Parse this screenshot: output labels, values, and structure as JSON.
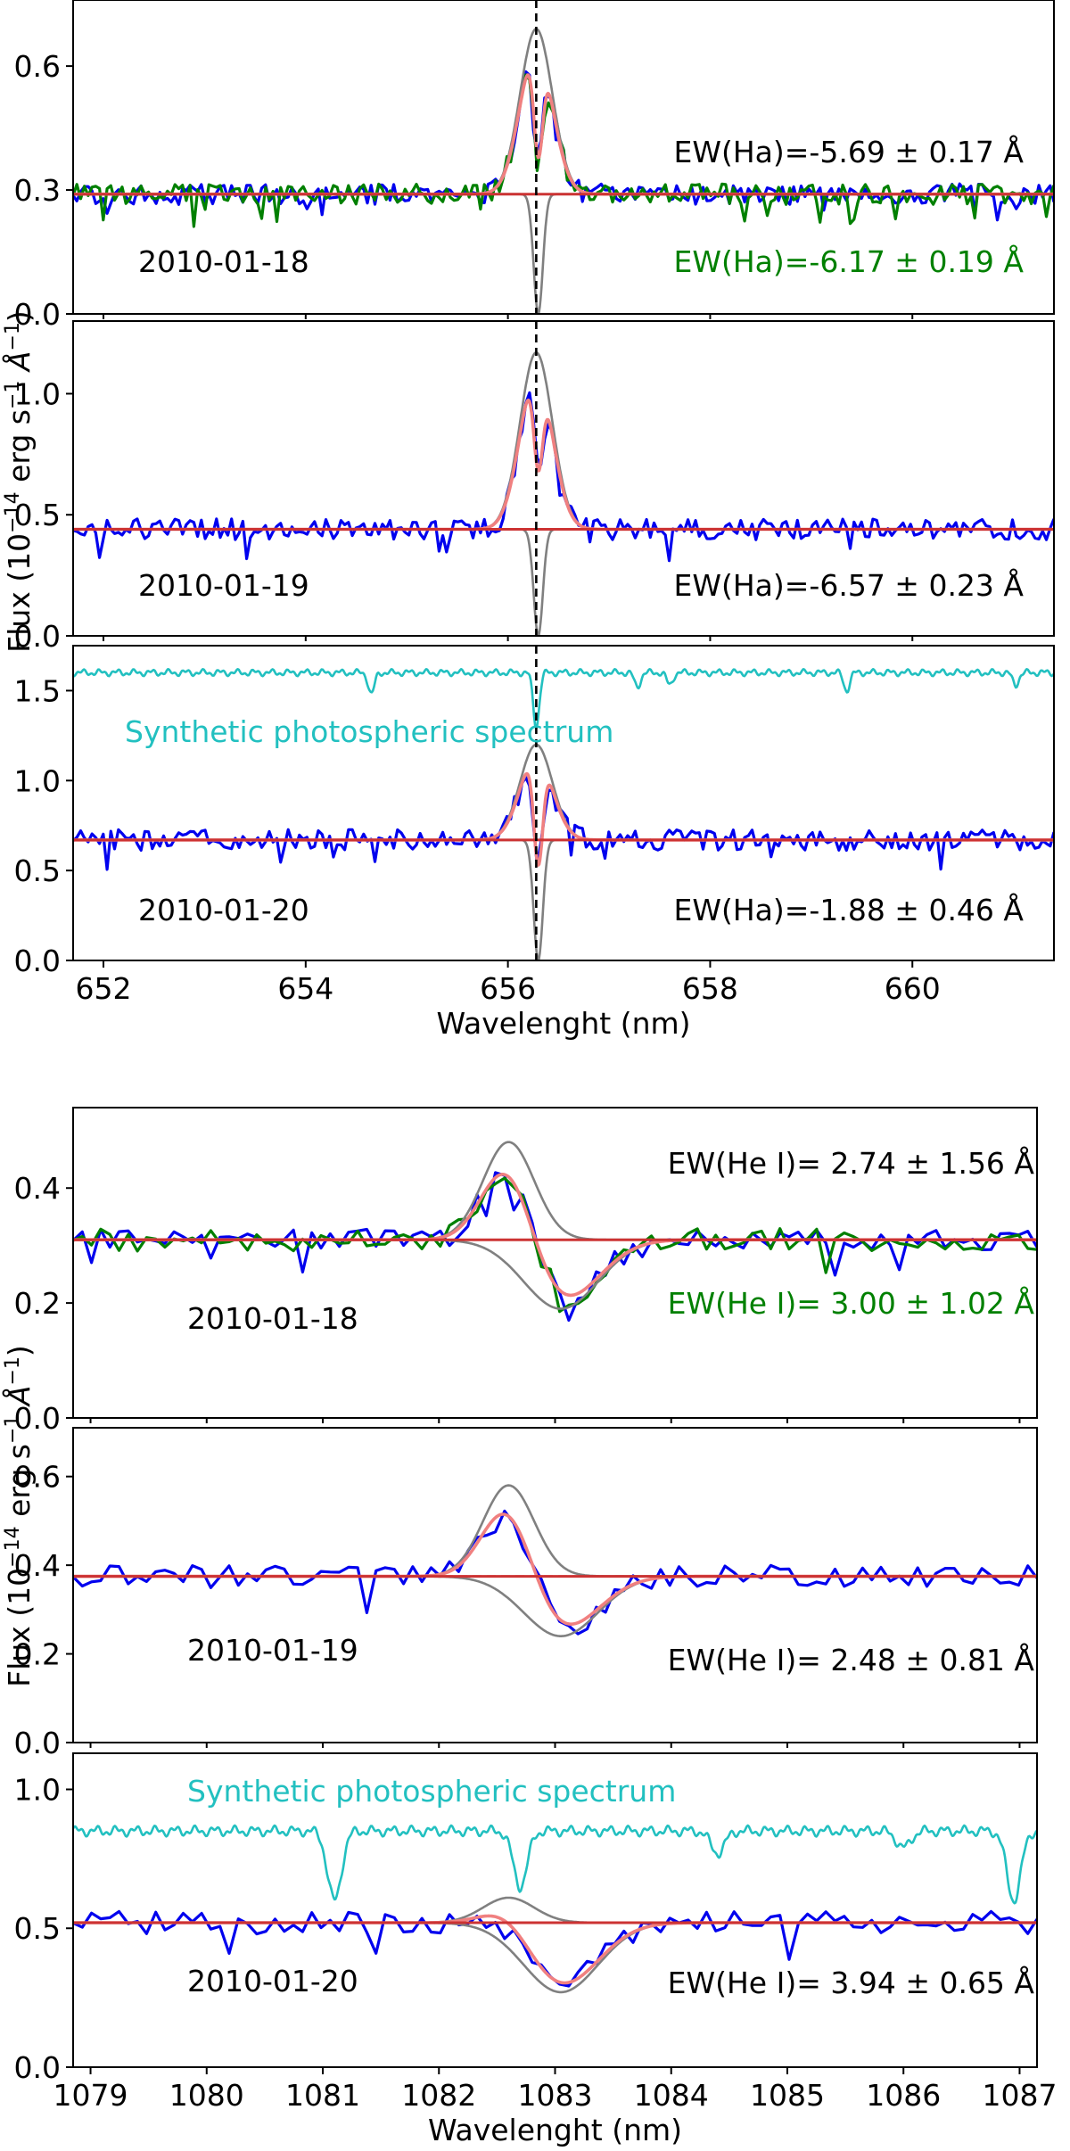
{
  "figure": {
    "background": "#ffffff"
  },
  "colors": {
    "obs_first": "#0000ee",
    "obs_second": "#008000",
    "fit": "#f08080",
    "fit_overlay": "#7a1e1e",
    "model": "#808080",
    "continuum_fit": "#cc3333",
    "continuum_guide": "#ff0000",
    "synthetic": "#22c0c0",
    "marker": "#000000",
    "annotation_default": "#000000",
    "annotation_second": "#008000",
    "annotation_synthetic": "#22c0c0"
  },
  "chart_data": [
    {
      "type": "line",
      "group": "H-alpha",
      "panel": 1,
      "date_label": "2010-01-18",
      "xlim": [
        651.7,
        661.4
      ],
      "ylim": [
        0.0,
        0.76
      ],
      "yticks": [
        0.0,
        0.3,
        0.6
      ],
      "ytick_labels": [
        "0.0",
        "0.3",
        "0.6"
      ],
      "line_center": 656.28,
      "continuum": 0.29,
      "emission_amplitude": 0.4,
      "absorption_depth": 0.29,
      "absorption_center": 656.3,
      "synthetic": false,
      "annotations": [
        {
          "text": "EW(Ha)=-5.69 ±  0.17 Å",
          "color": "#000000"
        },
        {
          "text": "EW(Ha)=-6.17 ±  0.19 Å",
          "color": "#008000"
        }
      ],
      "series": [
        {
          "name": "observed 2010-01-18 (first spectrum)",
          "color": "#0000ee"
        },
        {
          "name": "observed 2010-01-18 (second spectrum)",
          "color": "#008000"
        },
        {
          "name": "emission + absorption fit",
          "color": "#f08080"
        },
        {
          "name": "Gaussian emission component",
          "color": "#808080"
        },
        {
          "name": "Gaussian absorption component",
          "color": "#808080"
        },
        {
          "name": "continuum",
          "color": "#cc3333"
        }
      ]
    },
    {
      "type": "line",
      "group": "H-alpha",
      "panel": 2,
      "date_label": "2010-01-19",
      "xlim": [
        651.7,
        661.4
      ],
      "ylim": [
        0.0,
        1.3
      ],
      "yticks": [
        0.0,
        0.5,
        1.0
      ],
      "ytick_labels": [
        "0.0",
        "0.5",
        "1.0"
      ],
      "line_center": 656.28,
      "continuum": 0.44,
      "emission_amplitude": 0.73,
      "absorption_depth": 0.44,
      "absorption_center": 656.3,
      "synthetic": false,
      "annotations": [
        {
          "text": "EW(Ha)=-6.57 ±  0.23 Å",
          "color": "#000000"
        }
      ],
      "series": [
        {
          "name": "observed 2010-01-19",
          "color": "#0000ee"
        },
        {
          "name": "emission + absorption fit",
          "color": "#f08080"
        },
        {
          "name": "Gaussian emission component",
          "color": "#808080"
        },
        {
          "name": "Gaussian absorption component",
          "color": "#808080"
        },
        {
          "name": "continuum",
          "color": "#cc3333"
        }
      ]
    },
    {
      "type": "line",
      "group": "H-alpha",
      "panel": 3,
      "date_label": "2010-01-20",
      "xlim": [
        651.7,
        661.4
      ],
      "ylim": [
        0.0,
        1.75
      ],
      "yticks": [
        0.0,
        0.5,
        1.0,
        1.5
      ],
      "ytick_labels": [
        "0.0",
        "0.5",
        "1.0",
        "1.5"
      ],
      "line_center": 656.28,
      "continuum": 0.67,
      "emission_amplitude": 0.53,
      "absorption_depth": 0.67,
      "absorption_center": 656.3,
      "synthetic": true,
      "synthetic_label": "Synthetic photospheric spectrum",
      "synthetic_level": 1.6,
      "synthetic_lines": [
        {
          "center": 654.65,
          "depth": 0.12
        },
        {
          "center": 656.28,
          "depth": 0.3
        },
        {
          "center": 657.28,
          "depth": 0.08
        },
        {
          "center": 657.6,
          "depth": 0.07
        },
        {
          "center": 659.35,
          "depth": 0.1
        },
        {
          "center": 661.02,
          "depth": 0.07
        }
      ],
      "annotations": [
        {
          "text": "EW(Ha)=-1.88 ±  0.46 Å",
          "color": "#000000"
        }
      ],
      "xticks": [
        652,
        654,
        656,
        658,
        660
      ],
      "xtick_labels": [
        "652",
        "654",
        "656",
        "658",
        "660"
      ],
      "xlabel": "Wavelenght (nm)",
      "series": [
        {
          "name": "synthetic photospheric spectrum",
          "color": "#22c0c0"
        },
        {
          "name": "observed 2010-01-20",
          "color": "#0000ee"
        },
        {
          "name": "emission + absorption fit",
          "color": "#f08080"
        },
        {
          "name": "Gaussian emission component",
          "color": "#808080"
        },
        {
          "name": "Gaussian absorption component",
          "color": "#808080"
        },
        {
          "name": "continuum",
          "color": "#cc3333"
        }
      ]
    },
    {
      "type": "line",
      "group": "He I",
      "panel": 1,
      "date_label": "2010-01-18",
      "xlim": [
        1078.85,
        1087.15
      ],
      "ylim": [
        0.0,
        0.54
      ],
      "yticks": [
        0.0,
        0.2,
        0.4
      ],
      "ytick_labels": [
        "0.0",
        "0.2",
        "0.4"
      ],
      "line_center": 1082.6,
      "continuum": 0.31,
      "emission_amplitude": 0.17,
      "absorption_depth": 0.12,
      "absorption_center": 1083.05,
      "synthetic": false,
      "annotations": [
        {
          "text": "EW(He I)= 2.74 ±  1.56 Å",
          "color": "#000000"
        },
        {
          "text": "EW(He I)= 3.00 ±  1.02 Å",
          "color": "#008000"
        }
      ],
      "series": [
        {
          "name": "observed 2010-01-18 (first spectrum)",
          "color": "#0000ee"
        },
        {
          "name": "observed 2010-01-18 (second spectrum)",
          "color": "#008000"
        },
        {
          "name": "emission + absorption fit",
          "color": "#f08080"
        },
        {
          "name": "Gaussian emission component",
          "color": "#808080"
        },
        {
          "name": "Gaussian absorption component",
          "color": "#808080"
        },
        {
          "name": "continuum",
          "color": "#ff0000"
        }
      ]
    },
    {
      "type": "line",
      "group": "He I",
      "panel": 2,
      "date_label": "2010-01-19",
      "xlim": [
        1078.85,
        1087.15
      ],
      "ylim": [
        0.0,
        0.71
      ],
      "yticks": [
        0.0,
        0.2,
        0.4,
        0.6
      ],
      "ytick_labels": [
        "0.0",
        "0.2",
        "0.4",
        "0.6"
      ],
      "line_center": 1082.6,
      "continuum": 0.375,
      "emission_amplitude": 0.205,
      "absorption_depth": 0.135,
      "absorption_center": 1083.05,
      "synthetic": false,
      "annotations": [
        {
          "text": "EW(He I)= 2.48 ±  0.81 Å",
          "color": "#000000"
        }
      ],
      "series": [
        {
          "name": "observed 2010-01-19",
          "color": "#0000ee"
        },
        {
          "name": "emission + absorption fit",
          "color": "#f08080"
        },
        {
          "name": "Gaussian emission component",
          "color": "#808080"
        },
        {
          "name": "Gaussian absorption component",
          "color": "#808080"
        },
        {
          "name": "continuum",
          "color": "#ff0000"
        }
      ]
    },
    {
      "type": "line",
      "group": "He I",
      "panel": 3,
      "date_label": "2010-01-20",
      "xlim": [
        1078.85,
        1087.15
      ],
      "ylim": [
        0.0,
        1.13
      ],
      "yticks": [
        0.0,
        0.5,
        1.0
      ],
      "ytick_labels": [
        "0.0",
        "0.5",
        "1.0"
      ],
      "line_center": 1082.6,
      "continuum": 0.52,
      "emission_amplitude": 0.09,
      "absorption_depth": 0.25,
      "absorption_center": 1083.05,
      "synthetic": true,
      "synthetic_label": "Synthetic photospheric spectrum",
      "synthetic_level": 0.85,
      "synthetic_lines": [
        {
          "center": 1081.1,
          "depth": 0.25
        },
        {
          "center": 1082.7,
          "depth": 0.2
        },
        {
          "center": 1084.4,
          "depth": 0.08
        },
        {
          "center": 1086.0,
          "depth": 0.06
        },
        {
          "center": 1086.95,
          "depth": 0.25
        }
      ],
      "annotations": [
        {
          "text": "EW(He I)= 3.94 ±  0.65 Å",
          "color": "#000000"
        }
      ],
      "xticks": [
        1079,
        1080,
        1081,
        1082,
        1083,
        1084,
        1085,
        1086,
        1087
      ],
      "xtick_labels": [
        "1079",
        "1080",
        "1081",
        "1082",
        "1083",
        "1084",
        "1085",
        "1086",
        "1087"
      ],
      "xlabel": "Wavelenght (nm)",
      "series": [
        {
          "name": "synthetic photospheric spectrum",
          "color": "#22c0c0"
        },
        {
          "name": "observed 2010-01-20",
          "color": "#0000ee"
        },
        {
          "name": "emission + absorption fit",
          "color": "#f08080"
        },
        {
          "name": "Gaussian emission component",
          "color": "#808080"
        },
        {
          "name": "Gaussian absorption component",
          "color": "#808080"
        },
        {
          "name": "continuum",
          "color": "#ff0000"
        }
      ]
    }
  ],
  "ylabels": [
    {
      "prefix": "Flux (10",
      "exp": "−14",
      "middle": " erg s",
      "exp2": "−1",
      "unit": " Å",
      "exp3": "−1",
      "suffix": ")"
    },
    {
      "prefix": "Flux (10",
      "exp": "−14",
      "middle": " erg s",
      "exp2": "−1",
      "unit": " Å",
      "exp3": "−1",
      "suffix": ")"
    }
  ]
}
